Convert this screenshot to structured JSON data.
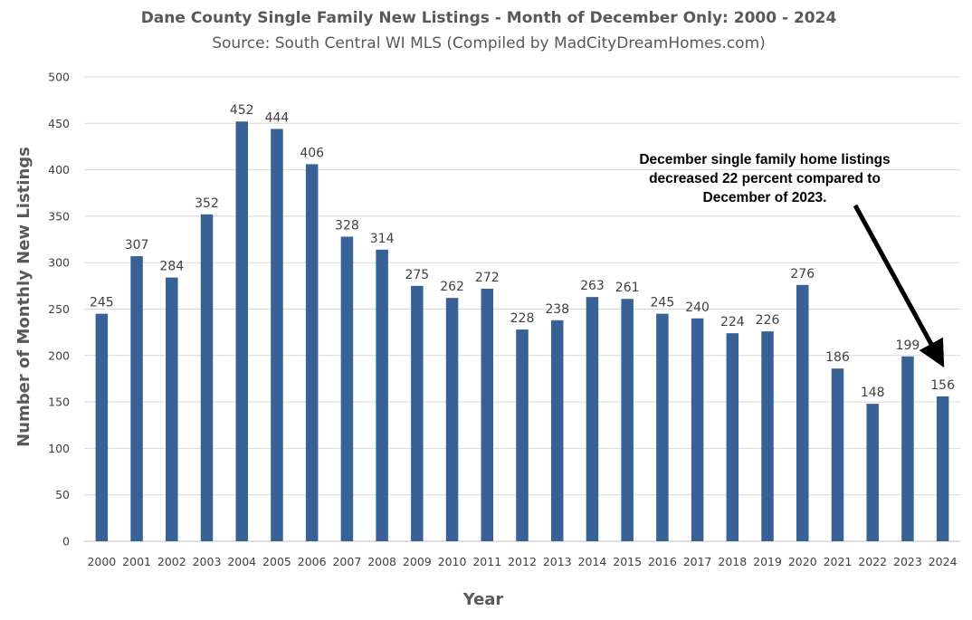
{
  "chart_data": {
    "type": "bar",
    "title": "Dane County Single Family New Listings - Month of December Only: 2000 - 2024",
    "subtitle": "Source: South Central WI MLS (Compiled by MadCityDreamHomes.com)",
    "xlabel": "Year",
    "ylabel": "Number of Monthly New Listings",
    "categories": [
      "2000",
      "2001",
      "2002",
      "2003",
      "2004",
      "2005",
      "2006",
      "2007",
      "2008",
      "2009",
      "2010",
      "2011",
      "2012",
      "2013",
      "2014",
      "2015",
      "2016",
      "2017",
      "2018",
      "2019",
      "2020",
      "2021",
      "2022",
      "2023",
      "2024"
    ],
    "values": [
      245,
      307,
      284,
      352,
      452,
      444,
      406,
      328,
      314,
      275,
      262,
      272,
      228,
      238,
      263,
      261,
      245,
      240,
      224,
      226,
      276,
      186,
      148,
      199,
      156
    ],
    "ylim": [
      0,
      500
    ],
    "yticks": [
      "0",
      "50",
      "100",
      "150",
      "200",
      "250",
      "300",
      "350",
      "400",
      "450",
      "500"
    ],
    "grid": true,
    "bar_color": "#386196",
    "annotation": {
      "lines": [
        "December single family home listings",
        "decreased 22 percent compared to",
        "December of 2023."
      ],
      "points_to": "2024"
    }
  }
}
